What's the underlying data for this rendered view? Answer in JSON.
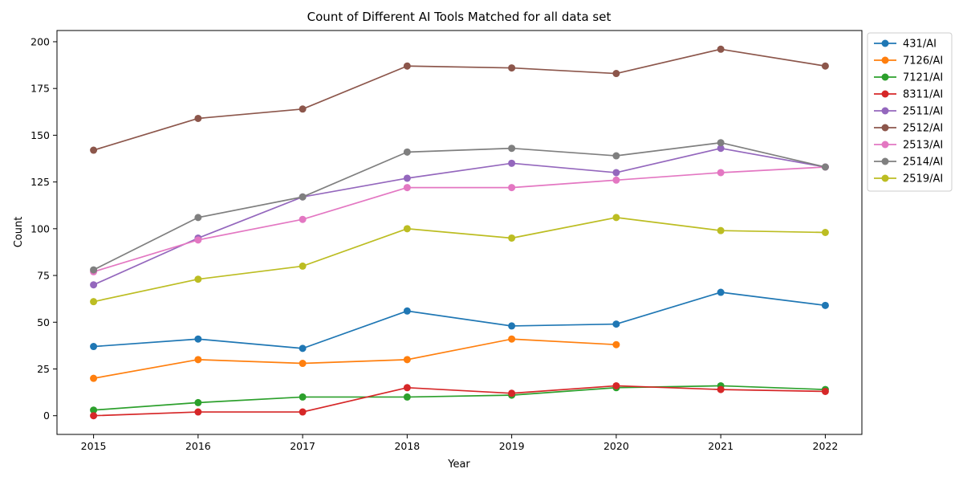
{
  "chart_data": {
    "type": "line",
    "title": "Count of Different AI Tools Matched for all data set",
    "xlabel": "Year",
    "ylabel": "Count",
    "x": [
      2015,
      2016,
      2017,
      2018,
      2019,
      2020,
      2021,
      2022
    ],
    "x_tick_labels": [
      "2015",
      "2016",
      "2017",
      "2018",
      "2019",
      "2020",
      "2021",
      "2022"
    ],
    "xlim": [
      2014.65,
      2022.35
    ],
    "ylim": [
      -10,
      206
    ],
    "y_ticks": [
      0,
      25,
      50,
      75,
      100,
      125,
      150,
      175,
      200
    ],
    "y_tick_labels": [
      "0",
      "25",
      "50",
      "75",
      "100",
      "125",
      "150",
      "175",
      "200"
    ],
    "grid": false,
    "legend_position": "outside-upper-right",
    "marker": "circle",
    "series": [
      {
        "name": "431/AI",
        "color": "#1f77b4",
        "values": [
          37,
          41,
          36,
          56,
          48,
          49,
          66,
          59
        ]
      },
      {
        "name": "7126/AI",
        "color": "#ff7f0e",
        "values": [
          20,
          30,
          28,
          30,
          41,
          38,
          null,
          null
        ]
      },
      {
        "name": "7121/AI",
        "color": "#2ca02c",
        "values": [
          3,
          7,
          10,
          10,
          11,
          15,
          16,
          14
        ]
      },
      {
        "name": "8311/AI",
        "color": "#d62728",
        "values": [
          0,
          2,
          2,
          15,
          12,
          16,
          14,
          13
        ]
      },
      {
        "name": "2511/AI",
        "color": "#9467bd",
        "values": [
          70,
          95,
          117,
          127,
          135,
          130,
          143,
          133
        ]
      },
      {
        "name": "2512/AI",
        "color": "#8c564b",
        "values": [
          142,
          159,
          164,
          187,
          186,
          183,
          196,
          187
        ]
      },
      {
        "name": "2513/AI",
        "color": "#e377c2",
        "values": [
          77,
          94,
          105,
          122,
          122,
          126,
          130,
          133
        ]
      },
      {
        "name": "2514/AI",
        "color": "#7f7f7f",
        "values": [
          78,
          106,
          117,
          141,
          143,
          139,
          146,
          133
        ]
      },
      {
        "name": "2519/AI",
        "color": "#bcbd22",
        "values": [
          61,
          73,
          80,
          100,
          95,
          106,
          99,
          98
        ]
      }
    ]
  }
}
